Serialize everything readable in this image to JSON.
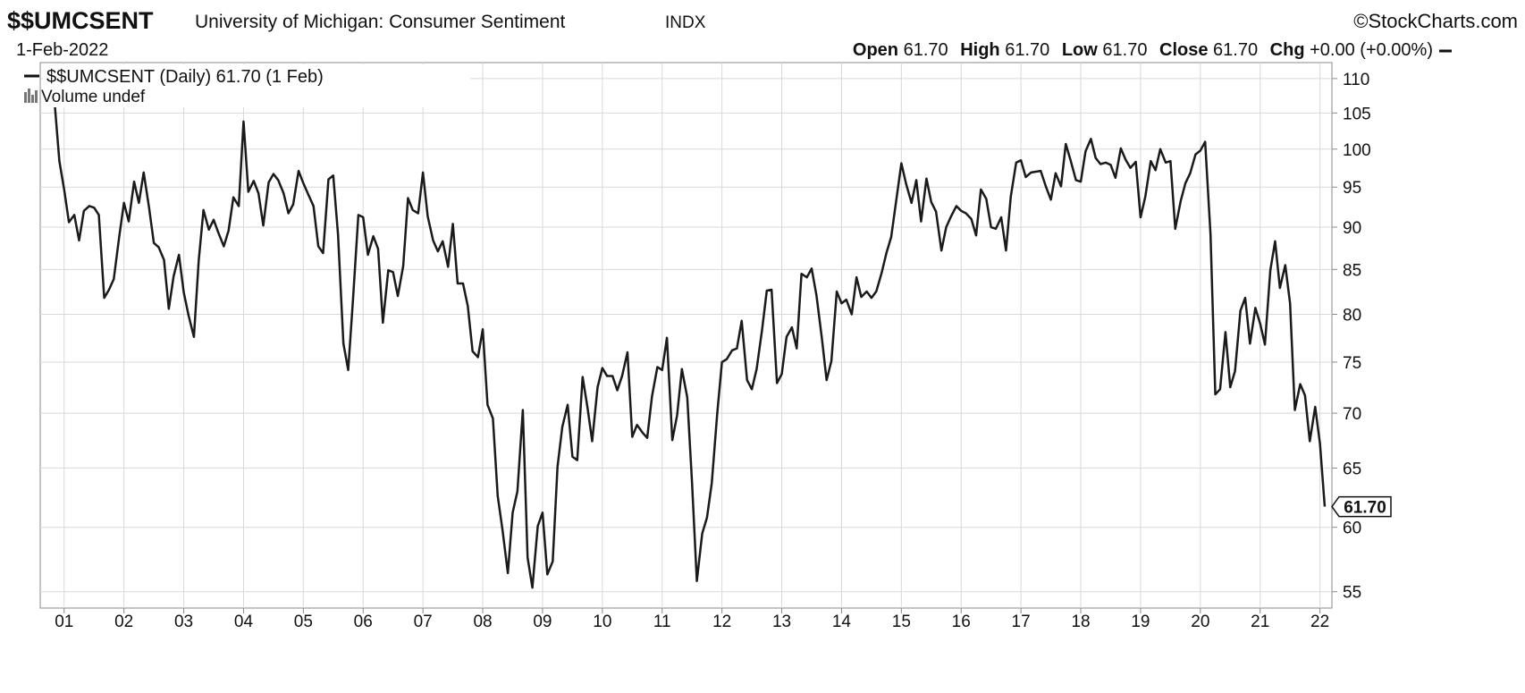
{
  "chart_data": {
    "type": "line",
    "title": "$$UMCSENT",
    "subtitle": "University of Michigan: Consumer Sentiment",
    "exchange": "INDX",
    "credit": "©StockCharts.com",
    "date": "1-Feb-2022",
    "quote": [
      {
        "name": "Open",
        "value": 61.7,
        "label": "61.70"
      },
      {
        "name": "High",
        "value": 61.7,
        "label": "61.70"
      },
      {
        "name": "Low",
        "value": 61.7,
        "label": "61.70"
      },
      {
        "name": "Close",
        "value": 61.7,
        "label": "61.70"
      },
      {
        "name": "Chg",
        "value": 0,
        "label": "+0.00 (+0.00%)"
      }
    ],
    "volume_legend": "Volume undef",
    "last_value_label": "61.70",
    "log_scale": true,
    "grid": true,
    "xlim": [
      2000.6,
      2022.2
    ],
    "ylim": [
      53.8,
      112.4
    ],
    "yticks": [
      55,
      60,
      65,
      70,
      75,
      80,
      85,
      90,
      95,
      100,
      105,
      110
    ],
    "xticks": [
      {
        "value": 2001,
        "label": "01"
      },
      {
        "value": 2002,
        "label": "02"
      },
      {
        "value": 2003,
        "label": "03"
      },
      {
        "value": 2004,
        "label": "04"
      },
      {
        "value": 2005,
        "label": "05"
      },
      {
        "value": 2006,
        "label": "06"
      },
      {
        "value": 2007,
        "label": "07"
      },
      {
        "value": 2008,
        "label": "08"
      },
      {
        "value": 2009,
        "label": "09"
      },
      {
        "value": 2010,
        "label": "10"
      },
      {
        "value": 2011,
        "label": "11"
      },
      {
        "value": 2012,
        "label": "12"
      },
      {
        "value": 2013,
        "label": "13"
      },
      {
        "value": 2014,
        "label": "14"
      },
      {
        "value": 2015,
        "label": "15"
      },
      {
        "value": 2016,
        "label": "16"
      },
      {
        "value": 2017,
        "label": "17"
      },
      {
        "value": 2018,
        "label": "18"
      },
      {
        "value": 2019,
        "label": "19"
      },
      {
        "value": 2020,
        "label": "20"
      },
      {
        "value": 2021,
        "label": "21"
      },
      {
        "value": 2022,
        "label": "22"
      }
    ],
    "x": [
      2000.83,
      2000.92,
      2001.0,
      2001.08,
      2001.17,
      2001.25,
      2001.33,
      2001.42,
      2001.5,
      2001.58,
      2001.67,
      2001.75,
      2001.83,
      2001.92,
      2002.0,
      2002.08,
      2002.17,
      2002.25,
      2002.33,
      2002.42,
      2002.5,
      2002.58,
      2002.67,
      2002.75,
      2002.83,
      2002.92,
      2003.0,
      2003.08,
      2003.17,
      2003.25,
      2003.33,
      2003.42,
      2003.5,
      2003.58,
      2003.67,
      2003.75,
      2003.83,
      2003.92,
      2004.0,
      2004.08,
      2004.17,
      2004.25,
      2004.33,
      2004.42,
      2004.5,
      2004.58,
      2004.67,
      2004.75,
      2004.83,
      2004.92,
      2005.0,
      2005.08,
      2005.17,
      2005.25,
      2005.33,
      2005.42,
      2005.5,
      2005.58,
      2005.67,
      2005.75,
      2005.83,
      2005.92,
      2006.0,
      2006.08,
      2006.17,
      2006.25,
      2006.33,
      2006.42,
      2006.5,
      2006.58,
      2006.67,
      2006.75,
      2006.83,
      2006.92,
      2007.0,
      2007.08,
      2007.17,
      2007.25,
      2007.33,
      2007.42,
      2007.5,
      2007.58,
      2007.67,
      2007.75,
      2007.83,
      2007.92,
      2008.0,
      2008.08,
      2008.17,
      2008.25,
      2008.33,
      2008.42,
      2008.5,
      2008.58,
      2008.67,
      2008.75,
      2008.83,
      2008.92,
      2009.0,
      2009.08,
      2009.17,
      2009.25,
      2009.33,
      2009.42,
      2009.5,
      2009.58,
      2009.67,
      2009.75,
      2009.83,
      2009.92,
      2010.0,
      2010.08,
      2010.17,
      2010.25,
      2010.33,
      2010.42,
      2010.5,
      2010.58,
      2010.67,
      2010.75,
      2010.83,
      2010.92,
      2011.0,
      2011.08,
      2011.17,
      2011.25,
      2011.33,
      2011.42,
      2011.5,
      2011.58,
      2011.67,
      2011.75,
      2011.83,
      2011.92,
      2012.0,
      2012.08,
      2012.17,
      2012.25,
      2012.33,
      2012.42,
      2012.5,
      2012.58,
      2012.67,
      2012.75,
      2012.83,
      2012.92,
      2013.0,
      2013.08,
      2013.17,
      2013.25,
      2013.33,
      2013.42,
      2013.5,
      2013.58,
      2013.67,
      2013.75,
      2013.83,
      2013.92,
      2014.0,
      2014.08,
      2014.17,
      2014.25,
      2014.33,
      2014.42,
      2014.5,
      2014.58,
      2014.67,
      2014.75,
      2014.83,
      2014.92,
      2015.0,
      2015.08,
      2015.17,
      2015.25,
      2015.33,
      2015.42,
      2015.5,
      2015.58,
      2015.67,
      2015.75,
      2015.83,
      2015.92,
      2016.0,
      2016.08,
      2016.17,
      2016.25,
      2016.33,
      2016.42,
      2016.5,
      2016.58,
      2016.67,
      2016.75,
      2016.83,
      2016.92,
      2017.0,
      2017.08,
      2017.17,
      2017.25,
      2017.33,
      2017.42,
      2017.5,
      2017.58,
      2017.67,
      2017.75,
      2017.83,
      2017.92,
      2018.0,
      2018.08,
      2018.17,
      2018.25,
      2018.33,
      2018.42,
      2018.5,
      2018.58,
      2018.67,
      2018.75,
      2018.83,
      2018.92,
      2019.0,
      2019.08,
      2019.17,
      2019.25,
      2019.33,
      2019.42,
      2019.5,
      2019.58,
      2019.67,
      2019.75,
      2019.83,
      2019.92,
      2020.0,
      2020.08,
      2020.17,
      2020.25,
      2020.33,
      2020.42,
      2020.5,
      2020.58,
      2020.67,
      2020.75,
      2020.83,
      2020.92,
      2021.0,
      2021.08,
      2021.17,
      2021.25,
      2021.33,
      2021.42,
      2021.5,
      2021.58,
      2021.67,
      2021.75,
      2021.83,
      2021.92,
      2022.0,
      2022.08
    ],
    "series": [
      {
        "name": "$$UMCSENT (Daily) 61.70 (1 Feb)",
        "color": "#1a1a1a",
        "values": [
          107.6,
          98.4,
          94.7,
          90.6,
          91.5,
          88.4,
          92.0,
          92.6,
          92.4,
          91.5,
          81.8,
          82.7,
          83.9,
          88.8,
          93.0,
          90.7,
          95.7,
          93.0,
          96.9,
          92.4,
          88.1,
          87.6,
          86.1,
          80.6,
          84.2,
          86.7,
          82.4,
          79.9,
          77.6,
          86.0,
          92.1,
          89.7,
          90.9,
          89.3,
          87.7,
          89.6,
          93.7,
          92.6,
          103.8,
          94.4,
          95.8,
          94.2,
          90.2,
          95.6,
          96.7,
          95.9,
          94.2,
          91.7,
          92.8,
          97.1,
          95.5,
          94.1,
          92.6,
          87.7,
          86.9,
          96.0,
          96.5,
          89.1,
          76.9,
          74.2,
          81.6,
          91.5,
          91.2,
          86.7,
          88.9,
          87.4,
          79.1,
          84.9,
          84.7,
          82.0,
          85.4,
          93.6,
          92.1,
          91.7,
          96.9,
          91.3,
          88.4,
          87.1,
          88.3,
          85.3,
          90.4,
          83.4,
          83.4,
          80.9,
          76.1,
          75.5,
          78.4,
          70.8,
          69.5,
          62.6,
          59.8,
          56.4,
          61.2,
          63.0,
          70.3,
          57.6,
          55.3,
          60.1,
          61.2,
          56.3,
          57.3,
          65.1,
          68.7,
          70.8,
          66.0,
          65.7,
          73.5,
          70.6,
          67.4,
          72.5,
          74.4,
          73.6,
          73.6,
          72.2,
          73.6,
          76.0,
          67.8,
          68.9,
          68.2,
          67.7,
          71.6,
          74.5,
          74.2,
          77.5,
          67.5,
          69.8,
          74.3,
          71.5,
          63.7,
          55.8,
          59.5,
          60.8,
          63.7,
          69.9,
          75.0,
          75.3,
          76.2,
          76.4,
          79.3,
          73.2,
          72.3,
          74.3,
          78.3,
          82.6,
          82.7,
          72.9,
          73.8,
          77.6,
          78.6,
          76.4,
          84.5,
          84.1,
          85.1,
          82.1,
          77.5,
          73.2,
          75.1,
          82.5,
          81.2,
          81.6,
          80.0,
          84.1,
          81.9,
          82.5,
          81.8,
          82.5,
          84.6,
          86.9,
          88.8,
          93.6,
          98.1,
          95.4,
          93.0,
          95.9,
          90.7,
          96.1,
          93.1,
          91.9,
          87.2,
          90.0,
          91.3,
          92.6,
          92.0,
          91.7,
          91.0,
          89.0,
          94.7,
          93.5,
          90.0,
          89.8,
          91.2,
          87.2,
          93.8,
          98.2,
          98.5,
          96.3,
          96.9,
          97.0,
          97.1,
          95.0,
          93.4,
          96.8,
          95.1,
          100.7,
          98.5,
          95.9,
          95.7,
          99.7,
          101.4,
          98.8,
          98.0,
          98.2,
          97.9,
          96.2,
          100.1,
          98.6,
          97.5,
          98.3,
          91.2,
          93.8,
          98.4,
          97.2,
          100.0,
          98.2,
          98.4,
          89.8,
          93.2,
          95.5,
          96.8,
          99.3,
          99.8,
          101.0,
          89.1,
          71.8,
          72.3,
          78.1,
          72.5,
          74.1,
          80.4,
          81.8,
          76.9,
          80.7,
          79.0,
          76.8,
          84.9,
          88.3,
          82.9,
          85.5,
          81.2,
          70.3,
          72.8,
          71.7,
          67.4,
          70.6,
          67.2,
          61.7
        ]
      }
    ]
  }
}
